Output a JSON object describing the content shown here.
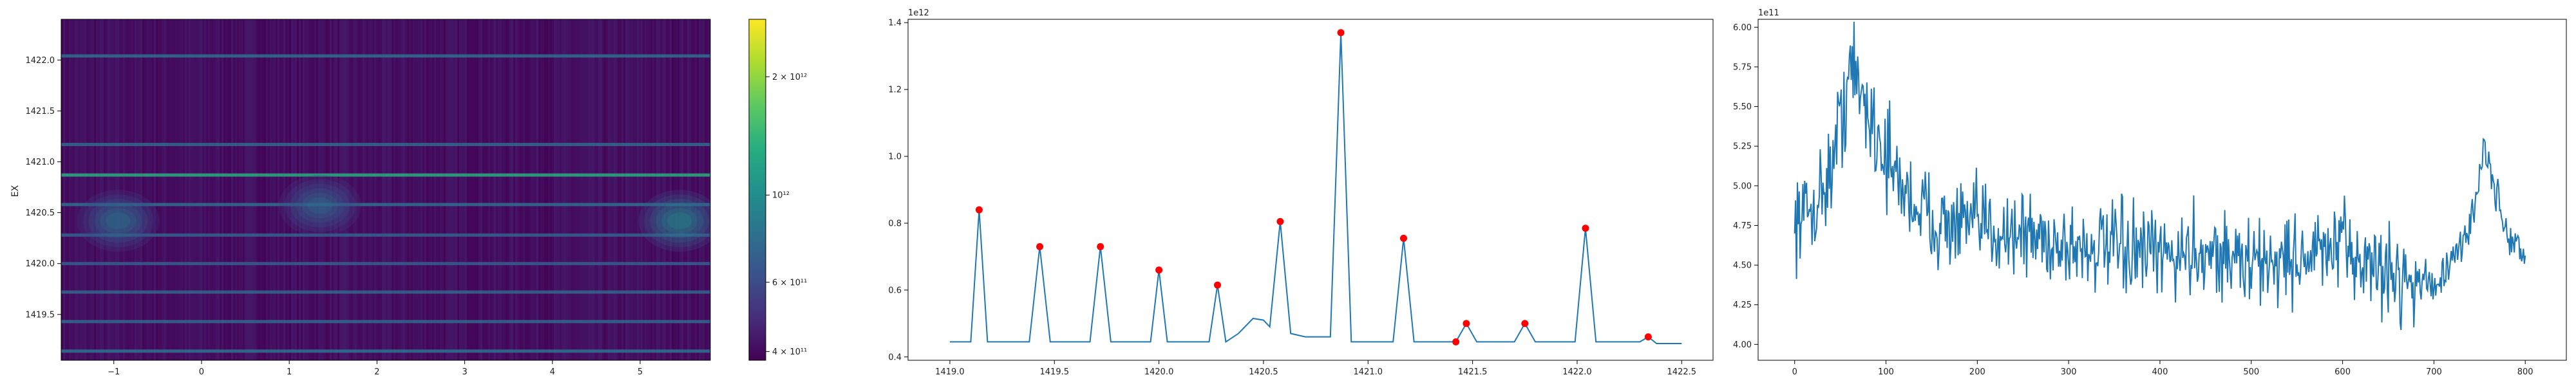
{
  "chart_data": [
    {
      "type": "heatmap",
      "ylabel": "EX",
      "xlim": [
        -1.6,
        5.8
      ],
      "ylim": [
        1419.05,
        1422.4
      ],
      "x_ticks": [
        {
          "value": -1,
          "label": "−1"
        },
        {
          "value": 0,
          "label": "0"
        },
        {
          "value": 1,
          "label": "1"
        },
        {
          "value": 2,
          "label": "2"
        },
        {
          "value": 3,
          "label": "3"
        },
        {
          "value": 4,
          "label": "4"
        },
        {
          "value": 5,
          "label": "5"
        }
      ],
      "y_ticks": [
        {
          "value": 1419.5,
          "label": "1419.5"
        },
        {
          "value": 1420.0,
          "label": "1420.0"
        },
        {
          "value": 1420.5,
          "label": "1420.5"
        },
        {
          "value": 1421.0,
          "label": "1421.0"
        },
        {
          "value": 1421.5,
          "label": "1421.5"
        },
        {
          "value": 1422.0,
          "label": "1422.0"
        }
      ],
      "colorbar": {
        "colormap": "viridis",
        "scale": "log",
        "range": [
          380000000000,
          2800000000000
        ],
        "ticks": [
          {
            "value": 400000000000,
            "label": "4 × 10¹¹"
          },
          {
            "value": 600000000000,
            "label": "6 × 10¹¹"
          },
          {
            "value": 1000000000000,
            "label": "10¹²"
          },
          {
            "value": 2000000000000,
            "label": "2 × 10¹²"
          }
        ]
      },
      "bright_rows": [
        {
          "y": 1419.14,
          "level": 0.38
        },
        {
          "y": 1419.43,
          "level": 0.34
        },
        {
          "y": 1419.72,
          "level": 0.33
        },
        {
          "y": 1420.0,
          "level": 0.3
        },
        {
          "y": 1420.28,
          "level": 0.31
        },
        {
          "y": 1420.58,
          "level": 0.36
        },
        {
          "y": 1420.87,
          "level": 0.62
        },
        {
          "y": 1421.17,
          "level": 0.34
        },
        {
          "y": 1422.04,
          "level": 0.36
        }
      ],
      "hotspots": [
        {
          "x": -0.95,
          "y": 1420.42,
          "level": 0.5
        },
        {
          "x": 1.35,
          "y": 1420.57,
          "level": 0.45
        },
        {
          "x": 5.45,
          "y": 1420.42,
          "level": 0.62
        }
      ]
    },
    {
      "type": "line",
      "offset_label": "1e12",
      "xlim": [
        1418.8,
        1422.65
      ],
      "ylim": [
        0.39,
        1.41
      ],
      "x_ticks": [
        {
          "value": 1419.0,
          "label": "1419.0"
        },
        {
          "value": 1419.5,
          "label": "1419.5"
        },
        {
          "value": 1420.0,
          "label": "1420.0"
        },
        {
          "value": 1420.5,
          "label": "1420.5"
        },
        {
          "value": 1421.0,
          "label": "1421.0"
        },
        {
          "value": 1421.5,
          "label": "1421.5"
        },
        {
          "value": 1422.0,
          "label": "1422.0"
        },
        {
          "value": 1422.5,
          "label": "1422.5"
        }
      ],
      "y_ticks": [
        {
          "value": 0.4,
          "label": "0.4"
        },
        {
          "value": 0.6,
          "label": "0.6"
        },
        {
          "value": 0.8,
          "label": "0.8"
        },
        {
          "value": 1.0,
          "label": "1.0"
        },
        {
          "value": 1.2,
          "label": "1.2"
        },
        {
          "value": 1.4,
          "label": "1.4"
        }
      ],
      "line_color": "#1f77b4",
      "marker_color": "#ff0000",
      "baseline": 0.445,
      "series_x": [
        1419.0,
        1419.1,
        1419.14,
        1419.18,
        1419.38,
        1419.43,
        1419.48,
        1419.67,
        1419.72,
        1419.77,
        1419.96,
        1420.0,
        1420.04,
        1420.24,
        1420.28,
        1420.32,
        1420.38,
        1420.45,
        1420.5,
        1420.53,
        1420.58,
        1420.63,
        1420.7,
        1420.82,
        1420.87,
        1420.92,
        1421.12,
        1421.17,
        1421.22,
        1421.42,
        1421.47,
        1421.52,
        1421.7,
        1421.75,
        1421.8,
        1421.99,
        1422.04,
        1422.09,
        1422.3,
        1422.34,
        1422.38,
        1422.5
      ],
      "series_y": [
        0.445,
        0.445,
        0.84,
        0.445,
        0.445,
        0.73,
        0.445,
        0.445,
        0.73,
        0.445,
        0.445,
        0.66,
        0.445,
        0.445,
        0.615,
        0.445,
        0.47,
        0.515,
        0.51,
        0.49,
        0.805,
        0.47,
        0.46,
        0.46,
        1.37,
        0.445,
        0.445,
        0.755,
        0.445,
        0.445,
        0.5,
        0.445,
        0.445,
        0.5,
        0.445,
        0.445,
        0.785,
        0.445,
        0.445,
        0.46,
        0.44,
        0.44
      ],
      "markers_x": [
        1419.14,
        1419.43,
        1419.72,
        1420.0,
        1420.28,
        1420.58,
        1420.87,
        1421.17,
        1421.42,
        1421.47,
        1421.75,
        1422.04,
        1422.34
      ],
      "markers_y": [
        0.84,
        0.73,
        0.73,
        0.66,
        0.615,
        0.805,
        1.37,
        0.755,
        0.445,
        0.5,
        0.5,
        0.785,
        0.46
      ]
    },
    {
      "type": "line",
      "offset_label": "1e11",
      "xlim": [
        -40,
        845
      ],
      "ylim": [
        3.9,
        6.05
      ],
      "x_ticks": [
        {
          "value": 0,
          "label": "0"
        },
        {
          "value": 100,
          "label": "100"
        },
        {
          "value": 200,
          "label": "200"
        },
        {
          "value": 300,
          "label": "300"
        },
        {
          "value": 400,
          "label": "400"
        },
        {
          "value": 500,
          "label": "500"
        },
        {
          "value": 600,
          "label": "600"
        },
        {
          "value": 700,
          "label": "700"
        },
        {
          "value": 800,
          "label": "800"
        }
      ],
      "y_ticks": [
        {
          "value": 4.0,
          "label": "4.00"
        },
        {
          "value": 4.25,
          "label": "4.25"
        },
        {
          "value": 4.5,
          "label": "4.50"
        },
        {
          "value": 4.75,
          "label": "4.75"
        },
        {
          "value": 5.0,
          "label": "5.00"
        },
        {
          "value": 5.25,
          "label": "5.25"
        },
        {
          "value": 5.5,
          "label": "5.50"
        },
        {
          "value": 5.75,
          "label": "5.75"
        },
        {
          "value": 6.0,
          "label": "6.00"
        }
      ],
      "line_color": "#1f77b4",
      "length": 801,
      "x_start": 0,
      "y_first": 4.7,
      "y_last": 4.56,
      "envelope_x": [
        0,
        20,
        40,
        55,
        60,
        75,
        90,
        110,
        130,
        160,
        200,
        250,
        300,
        350,
        400,
        450,
        500,
        550,
        600,
        650,
        700,
        720,
        740,
        755,
        765,
        780,
        800
      ],
      "envelope_y": [
        4.8,
        4.85,
        5.1,
        5.55,
        5.75,
        5.55,
        5.35,
        5.05,
        4.9,
        4.75,
        4.75,
        4.7,
        4.62,
        4.6,
        4.55,
        4.6,
        4.5,
        4.55,
        4.6,
        4.45,
        4.38,
        4.5,
        4.75,
        5.25,
        5.0,
        4.7,
        4.56
      ],
      "noise_amplitude": 0.2
    }
  ]
}
